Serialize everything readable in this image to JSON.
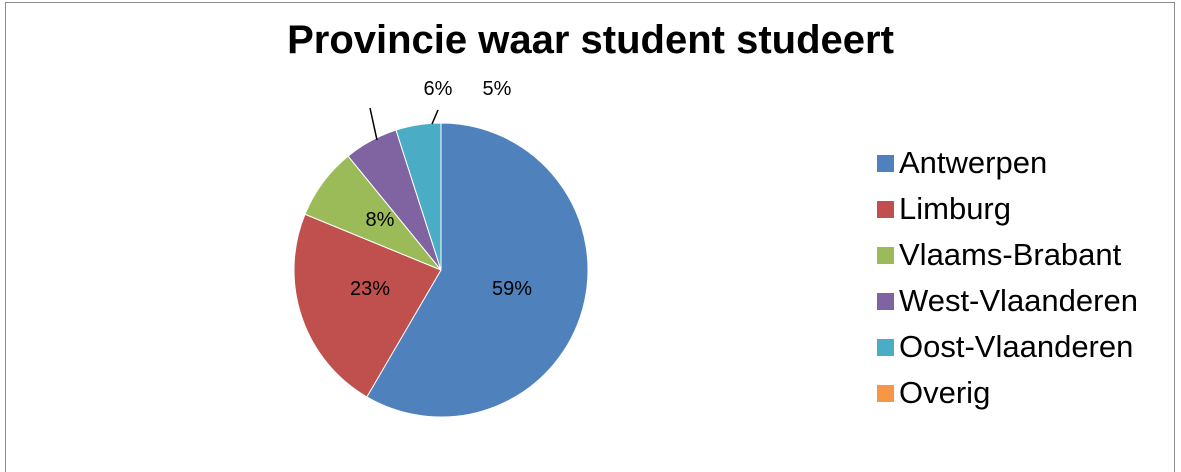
{
  "chart_data": {
    "type": "pie",
    "title": "Provincie waar student studeert",
    "categories": [
      "Antwerpen",
      "Limburg",
      "Vlaams-Brabant",
      "West-Vlaanderen",
      "Oost-Vlaanderen",
      "Overig"
    ],
    "values": [
      59,
      23,
      8,
      6,
      5,
      0
    ],
    "data_labels": [
      "59%",
      "23%",
      "8%",
      "6%",
      "5%",
      ""
    ],
    "unit": "%",
    "colors": [
      "#4f81bd",
      "#c0504d",
      "#9bbb59",
      "#8064a2",
      "#4bacc6",
      "#f79646"
    ],
    "legend_position": "right"
  }
}
